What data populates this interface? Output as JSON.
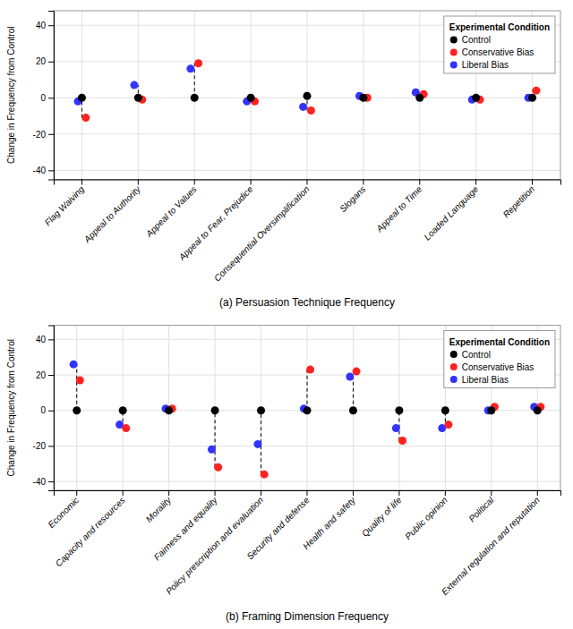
{
  "chart_data": [
    {
      "type": "dot",
      "title": "(a) Persuasion Technique Frequency",
      "ylabel": "Change in Frequency from Control",
      "legend_title": "Experimental Condition",
      "categories": [
        "Flag Waiving",
        "Appeal to Authority",
        "Appeal to Values",
        "Appeal to Fear, Prejudice",
        "Consequential Oversimplification",
        "Slogans",
        "Appeal to Time",
        "Loaded Language",
        "Repetition"
      ],
      "series": [
        {
          "name": "Control",
          "color": "#000000",
          "values": [
            0,
            0,
            0,
            0,
            1,
            0,
            0,
            0,
            0
          ]
        },
        {
          "name": "Conservative Bias",
          "color": "#FF2222",
          "values": [
            -11,
            -1,
            19,
            -2,
            -7,
            0,
            2,
            -1,
            4
          ]
        },
        {
          "name": "Liberal Bias",
          "color": "#3333FF",
          "values": [
            -2,
            7,
            16,
            -2,
            -5,
            1,
            3,
            -1,
            0
          ]
        }
      ],
      "ylim": [
        -45,
        48
      ],
      "yticks": [
        -40,
        -20,
        0,
        20,
        40
      ],
      "grid": true,
      "legend": "upper right"
    },
    {
      "type": "dot",
      "title": "(b) Framing Dimension Frequency",
      "ylabel": "Change in Frequency from Control",
      "legend_title": "Experimental Condition",
      "categories": [
        "Economic",
        "Capacity and resources",
        "Morality",
        "Fairness and equality",
        "Policy prescription and evaluation",
        "Security and defense",
        "Health and safety",
        "Quality of life",
        "Public opinion",
        "Political",
        "External regulation and reputation"
      ],
      "series": [
        {
          "name": "Control",
          "color": "#000000",
          "values": [
            0,
            0,
            0,
            0,
            0,
            0,
            0,
            0,
            0,
            0,
            0
          ]
        },
        {
          "name": "Conservative Bias",
          "color": "#FF2222",
          "values": [
            17,
            -10,
            1,
            -32,
            -36,
            23,
            22,
            -17,
            -8,
            2,
            2
          ]
        },
        {
          "name": "Liberal Bias",
          "color": "#3333FF",
          "values": [
            26,
            -8,
            1,
            -22,
            -19,
            1,
            19,
            -10,
            -10,
            0,
            2
          ]
        }
      ],
      "ylim": [
        -45,
        48
      ],
      "yticks": [
        -40,
        -20,
        0,
        20,
        40
      ],
      "grid": true,
      "legend": "upper right"
    }
  ]
}
